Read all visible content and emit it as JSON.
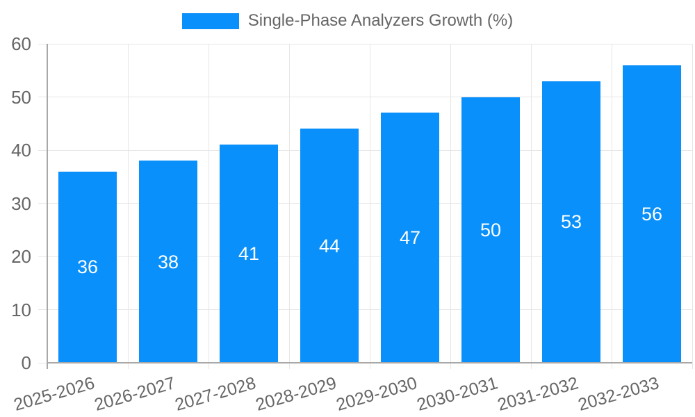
{
  "legend": {
    "label": "Single-Phase Analyzers Growth (%)"
  },
  "colors": {
    "bar": "#0a90fa",
    "grid": "#e6e6e6",
    "axis": "#a8a8a8",
    "text": "#666666",
    "bar_label": "#ffffff",
    "background": "#ffffff"
  },
  "chart_data": {
    "type": "bar",
    "title": "",
    "xlabel": "",
    "ylabel": "",
    "categories": [
      "2025-2026",
      "2026-2027",
      "2027-2028",
      "2028-2029",
      "2029-2030",
      "2030-2031",
      "2031-2032",
      "2032-2033"
    ],
    "series": [
      {
        "name": "Single-Phase Analyzers Growth (%)",
        "values": [
          36,
          38,
          41,
          44,
          47,
          50,
          53,
          56
        ]
      }
    ],
    "value_labels": [
      "36",
      "38",
      "41",
      "44",
      "47",
      "50",
      "53",
      "56"
    ],
    "value_label_position": "inside-middle",
    "ylim": [
      0,
      60
    ],
    "yticks": [
      0,
      10,
      20,
      30,
      40,
      50,
      60
    ],
    "grid": "horizontal-and-vertical-boundaries",
    "legend_position": "top-center",
    "x_tick_rotation_deg": -16
  }
}
